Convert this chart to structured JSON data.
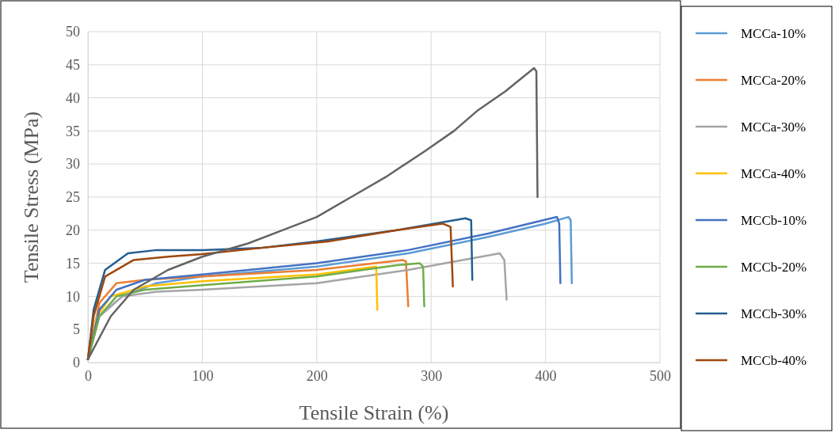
{
  "chart_data": {
    "type": "line",
    "xlabel": "Tensile Strain (%)",
    "ylabel": "Tensile Stress (MPa)",
    "xlim": [
      0,
      500
    ],
    "xticks": [
      0,
      100,
      200,
      300,
      400,
      500
    ],
    "ylim": [
      0,
      50
    ],
    "yticks": [
      0,
      5,
      10,
      15,
      20,
      25,
      30,
      35,
      40,
      45,
      50
    ],
    "grid": true,
    "legend": "right",
    "marker": "none",
    "line_style": "solid",
    "series": [
      {
        "name": "MCCa-10%",
        "color": "#5b9bd5",
        "x": [
          0,
          10,
          30,
          60,
          100,
          200,
          280,
          350,
          400,
          420,
          422,
          423
        ],
        "values": [
          0.5,
          7,
          10,
          12,
          13,
          14.5,
          16.5,
          19,
          21,
          22,
          21.5,
          12
        ]
      },
      {
        "name": "MCCa-20%",
        "color": "#ed7d31",
        "x": [
          0,
          10,
          25,
          50,
          100,
          200,
          275,
          278,
          280
        ],
        "values": [
          0.5,
          9,
          12,
          12.5,
          13,
          14,
          15.5,
          15.3,
          8.5
        ]
      },
      {
        "name": "MCCa-30%",
        "color": "#a5a5a5",
        "x": [
          0,
          10,
          30,
          60,
          100,
          200,
          280,
          360,
          364,
          366
        ],
        "values": [
          0.5,
          7,
          10,
          10.7,
          11,
          12,
          14,
          16.5,
          15.5,
          9.5
        ]
      },
      {
        "name": "MCCa-40%",
        "color": "#ffc000",
        "x": [
          0,
          8,
          20,
          50,
          100,
          200,
          252,
          253
        ],
        "values": [
          0.5,
          7,
          10,
          11.5,
          12.3,
          13.3,
          14.5,
          8
        ]
      },
      {
        "name": "MCCb-10%",
        "color": "#4472c4",
        "x": [
          0,
          10,
          25,
          50,
          100,
          200,
          280,
          350,
          410,
          412,
          413
        ],
        "values": [
          0.5,
          8,
          11,
          12.5,
          13.3,
          15,
          17,
          19.5,
          22,
          21,
          12
        ]
      },
      {
        "name": "MCCb-20%",
        "color": "#70ad47",
        "x": [
          0,
          10,
          25,
          50,
          100,
          200,
          270,
          290,
          293,
          294
        ],
        "values": [
          0.5,
          7,
          10,
          11,
          11.7,
          13,
          14.7,
          15,
          14.5,
          8.5
        ]
      },
      {
        "name": "MCCb-30%",
        "color": "#255e91",
        "x": [
          0,
          5,
          15,
          35,
          60,
          100,
          150,
          200,
          270,
          330,
          335,
          336
        ],
        "values": [
          0.5,
          8,
          14,
          16.5,
          17,
          17,
          17.3,
          18.3,
          20,
          21.8,
          21.5,
          12.5
        ]
      },
      {
        "name": "MCCb-40%",
        "color": "#9e480e",
        "x": [
          0,
          5,
          15,
          40,
          70,
          100,
          150,
          210,
          270,
          310,
          317,
          319
        ],
        "values": [
          0.5,
          7,
          13,
          15.5,
          16,
          16.4,
          17.3,
          18.3,
          20,
          21,
          20.5,
          11.5
        ]
      },
      {
        "color": "#636363",
        "x": [
          0,
          20,
          40,
          70,
          100,
          140,
          170,
          200,
          230,
          260,
          295,
          320,
          340,
          365,
          390,
          392,
          393
        ],
        "values": [
          0.5,
          7,
          11,
          14,
          16,
          18,
          20,
          22,
          25,
          28,
          32,
          35,
          38,
          41,
          44.5,
          44,
          25
        ]
      }
    ]
  }
}
